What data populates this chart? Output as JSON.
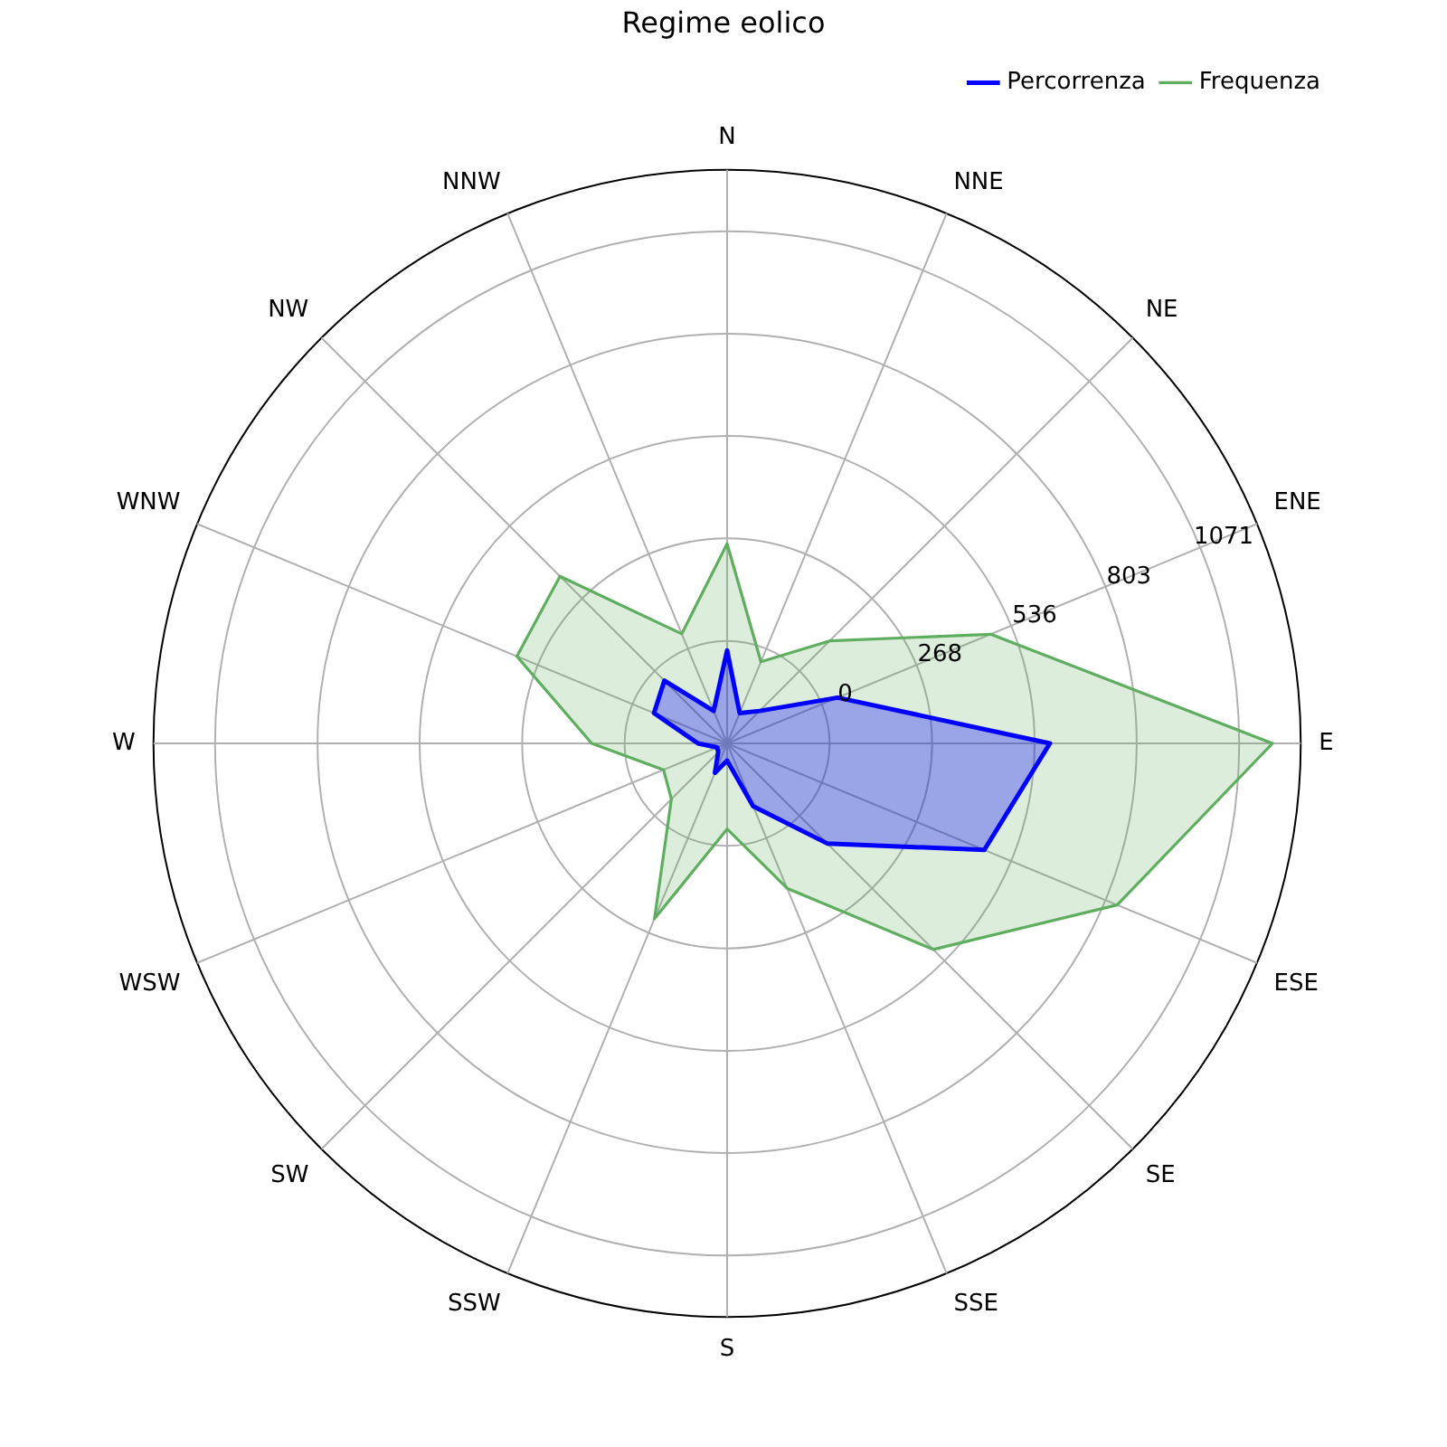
{
  "chart_data": {
    "type": "radar",
    "title": "Regime eolico",
    "categories": [
      "N",
      "NNE",
      "NE",
      "ENE",
      "E",
      "ESE",
      "SE",
      "SSE",
      "S",
      "SSW",
      "SW",
      "WSW",
      "W",
      "WNW",
      "NW",
      "NNW"
    ],
    "series": [
      {
        "name": "Percorrenza",
        "color": "#0000ff",
        "values": [
          -25,
          -182,
          -148,
          45,
          576,
          460,
          102,
          -90,
          -223,
          -185,
          -235,
          -240,
          -192,
          -61,
          -36,
          -176
        ]
      },
      {
        "name": "Frequenza",
        "color": "#5fae5f",
        "values": [
          254,
          -37,
          111,
          478,
          1158,
          836,
          494,
          142,
          -44,
          228,
          -62,
          -88,
          86,
          327,
          350,
          42
        ]
      }
    ],
    "ylim": [
      -268,
      1232
    ],
    "yticks": [
      0,
      268,
      536,
      803,
      1071
    ],
    "grid": true,
    "legend": "top right",
    "marker": "none"
  }
}
